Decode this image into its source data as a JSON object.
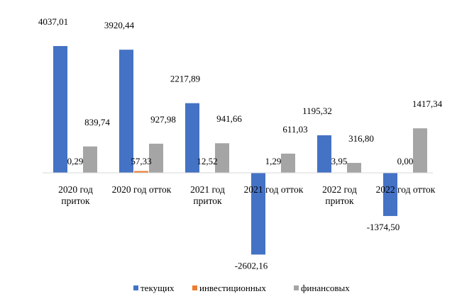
{
  "chart_data": {
    "type": "bar",
    "title": "",
    "xlabel": "",
    "ylabel": "",
    "ylim": [
      -2700,
      4100
    ],
    "grid": false,
    "legend_position": "bottom",
    "categories": [
      [
        "2020 год",
        "приток"
      ],
      [
        "2020 год отток"
      ],
      [
        "2021 год",
        "приток"
      ],
      [
        "2021 год отток"
      ],
      [
        "2022 год",
        "приток"
      ],
      [
        "2022 год отток"
      ]
    ],
    "series": [
      {
        "name": "текущих",
        "color": "#4472c4",
        "values": [
          4037.01,
          3920.44,
          2217.89,
          -2602.16,
          1195.32,
          -1374.5
        ],
        "labels": [
          "4037,01",
          "3920,44",
          "2217,89",
          "-2602,16",
          "1195,32",
          "-1374,50"
        ]
      },
      {
        "name": "инвестиционных",
        "color": "#ed7d31",
        "values": [
          0.29,
          57.33,
          12.52,
          1.29,
          3.95,
          0.0
        ],
        "labels": [
          "0,29",
          "57,33",
          "12,52",
          "1,29",
          "3,95",
          "0,00"
        ]
      },
      {
        "name": "финансовых",
        "color": "#a5a5a5",
        "values": [
          839.74,
          927.98,
          941.66,
          611.03,
          316.8,
          1417.34
        ],
        "labels": [
          "839,74",
          "927,98",
          "941,66",
          "611,03",
          "316,80",
          "1417,34"
        ]
      }
    ]
  }
}
